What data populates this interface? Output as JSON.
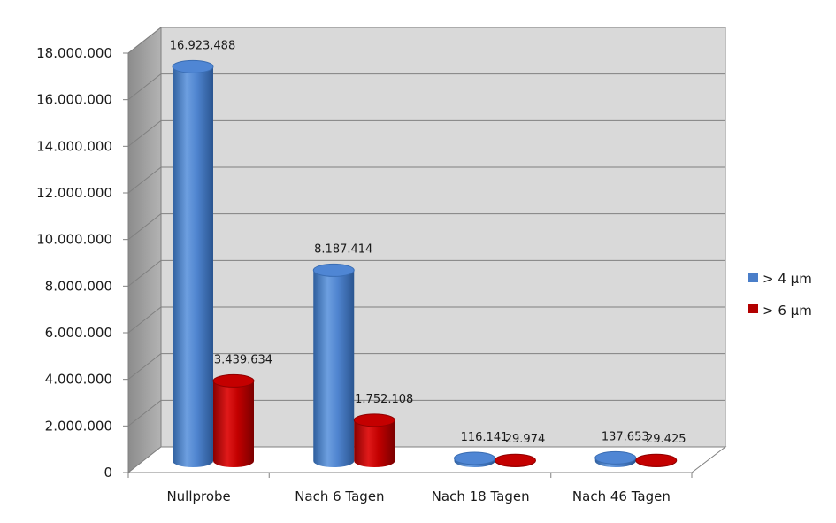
{
  "chart_data": {
    "type": "bar",
    "categories": [
      "Nullprobe",
      "Nach 6 Tagen",
      "Nach 18 Tagen",
      "Nach 46 Tagen"
    ],
    "series": [
      {
        "name": "> 4 µm",
        "values": [
          16923488,
          8187414,
          116141,
          137653
        ],
        "labels": [
          "16.923.488",
          "8.187.414",
          "116.141",
          "137.653"
        ],
        "color": "#4a7ec9"
      },
      {
        "name": "> 6 µm",
        "values": [
          3439634,
          1752108,
          29974,
          29425
        ],
        "labels": [
          "3.439.634",
          "1.752.108",
          "29.974",
          "29.425"
        ],
        "color": "#b30000"
      }
    ],
    "yticks": [
      "0",
      "2.000.000",
      "4.000.000",
      "6.000.000",
      "8.000.000",
      "10.000.000",
      "12.000.000",
      "14.000.000",
      "16.000.000",
      "18.000.000"
    ],
    "ylim": [
      0,
      18000000
    ],
    "grid": true,
    "legend": "right",
    "title": "",
    "xlabel": "",
    "ylabel": ""
  }
}
